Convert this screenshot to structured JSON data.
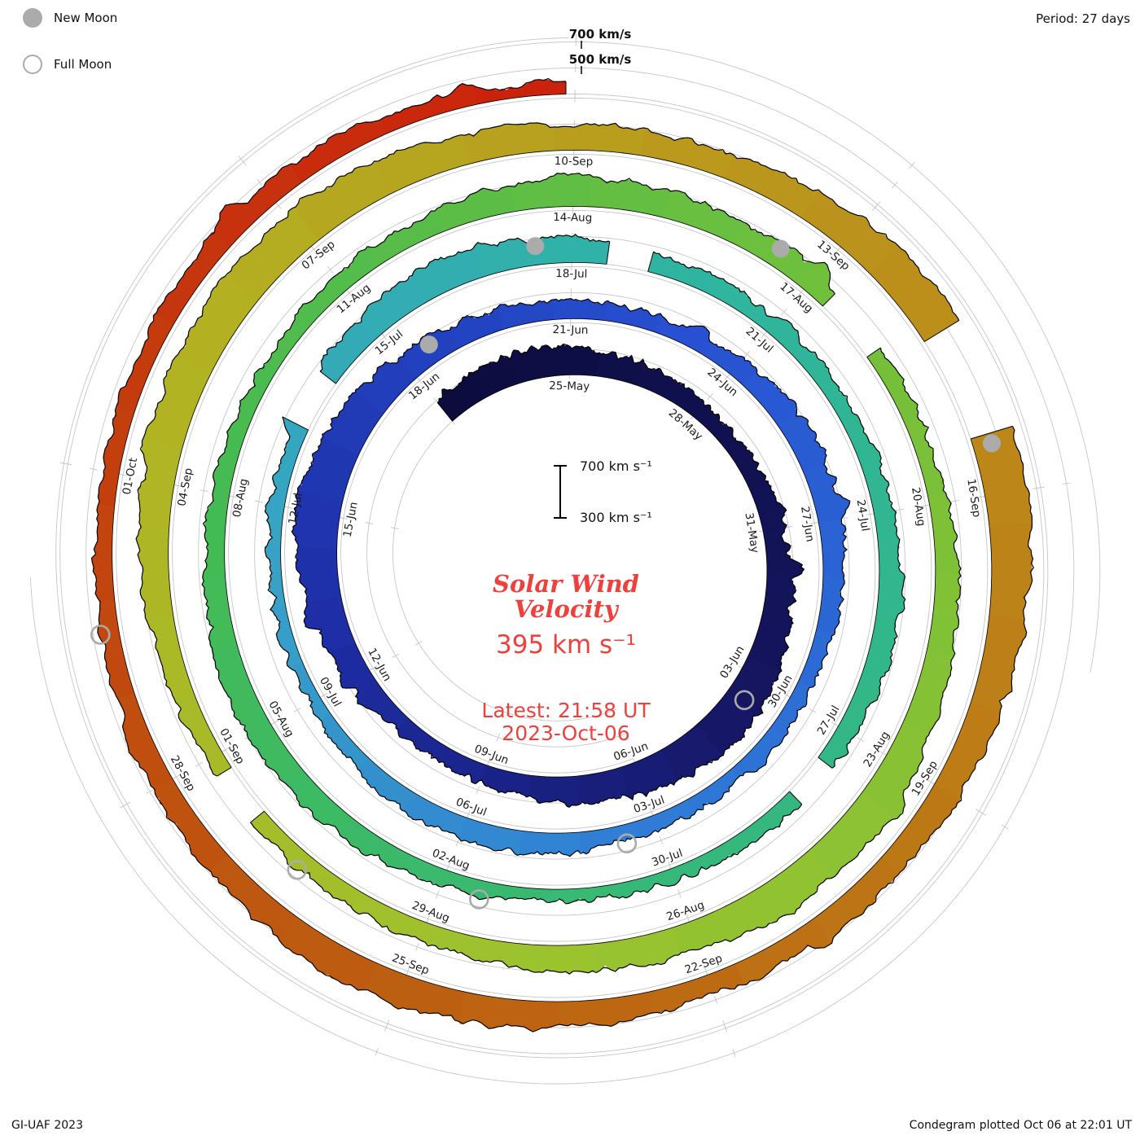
{
  "colors": {
    "accent_red": "#ee403c",
    "moon_gray": "#ababab",
    "grid": "#c6c6c6",
    "label": "#1a1a1a"
  },
  "legend": {
    "new_moon": "New Moon",
    "full_moon": "Full Moon"
  },
  "header": {
    "period": "Period: 27 days"
  },
  "outer_scale": {
    "v700": "700 km/s",
    "v500": "500 km/s"
  },
  "center": {
    "bar_high": "700 km s⁻¹",
    "bar_low": "300 km s⁻¹",
    "title_line1": "Solar Wind",
    "title_line2": "Velocity",
    "current_value": "395 km s⁻¹",
    "latest": "Latest: 21:58 UT",
    "date": "2023-Oct-06"
  },
  "footer": {
    "credit": "GI-UAF 2023",
    "plotted": "Condegram plotted Oct 06 at 22:01 UT"
  },
  "chart_data": {
    "type": "line",
    "layout": "polar-spiral-condegram",
    "title": "Solar Wind Velocity",
    "period_days": 27,
    "start_date": "2023-05-22",
    "latest_utc": "2023-10-06 21:58",
    "latest_velocity_km_s": 395,
    "velocity_axis": {
      "baseline": 300,
      "ring_levels": [
        300,
        500,
        700
      ],
      "unit": "km/s"
    },
    "first_label_day_offset": 3,
    "label_step_days": 3,
    "date_labels": [
      "25-May",
      "28-May",
      "31-May",
      "03-Jun",
      "06-Jun",
      "09-Jun",
      "12-Jun",
      "15-Jun",
      "18-Jun",
      "21-Jun",
      "24-Jun",
      "27-Jun",
      "30-Jun",
      "03-Jul",
      "06-Jul",
      "09-Jul",
      "12-Jul",
      "15-Jul",
      "18-Jul",
      "21-Jul",
      "24-Jul",
      "27-Jul",
      "30-Jul",
      "02-Aug",
      "05-Aug",
      "08-Aug",
      "11-Aug",
      "14-Aug",
      "17-Aug",
      "20-Aug",
      "23-Aug",
      "26-Aug",
      "29-Aug",
      "01-Sep",
      "04-Sep",
      "07-Sep",
      "10-Sep",
      "13-Sep",
      "16-Sep",
      "19-Sep",
      "22-Sep",
      "25-Sep",
      "28-Sep",
      "01-Oct"
    ],
    "daily_velocity_km_s": [
      470,
      500,
      540,
      520,
      490,
      460,
      440,
      430,
      440,
      460,
      490,
      530,
      570,
      610,
      590,
      550,
      510,
      480,
      450,
      430,
      440,
      480,
      540,
      600,
      640,
      610,
      560,
      510,
      480,
      460,
      440,
      425,
      430,
      450,
      480,
      500,
      480,
      455,
      435,
      420,
      405,
      395,
      415,
      445,
      475,
      460,
      440,
      418,
      400,
      388,
      385,
      405,
      435,
      470,
      510,
      545,
      525,
      490,
      460,
      435,
      420,
      412,
      428,
      455,
      485,
      470,
      448,
      430,
      412,
      398,
      392,
      402,
      422,
      452,
      482,
      512,
      492,
      462,
      442,
      422,
      412,
      432,
      462,
      502,
      532,
      512,
      482,
      455,
      435,
      425,
      445,
      475,
      515,
      555,
      585,
      562,
      532,
      502,
      472,
      452,
      432,
      422,
      442,
      472,
      512,
      552,
      592,
      622,
      602,
      572,
      532,
      502,
      482,
      525,
      575,
      615,
      645,
      622,
      582,
      545,
      512,
      492,
      472,
      462,
      482,
      512,
      542,
      522,
      492,
      462,
      442,
      432,
      422,
      432,
      452,
      472,
      442,
      400
    ],
    "data_gaps_day_ranges": [
      [
        52.2,
        53.0
      ],
      [
        57.5,
        58.1
      ],
      [
        66.5,
        67.1
      ],
      [
        87.3,
        88.1
      ],
      [
        101.2,
        101.8
      ],
      [
        115.3,
        116.4
      ]
    ],
    "moons": {
      "new_dates": [
        "2023-06-18",
        "2023-07-17",
        "2023-08-16",
        "2023-09-15"
      ],
      "full_dates": [
        "2023-06-03",
        "2023-07-03",
        "2023-08-01",
        "2023-08-30",
        "2023-09-29"
      ],
      "new_day_offsets": [
        27.5,
        56.5,
        86.5,
        116.5
      ],
      "full_day_offsets": [
        12.5,
        42.5,
        71.5,
        100.5,
        130.5
      ]
    },
    "color_timeline": [
      [
        0,
        "#0c0c3e"
      ],
      [
        12,
        "#15155f"
      ],
      [
        22,
        "#1d2ea6"
      ],
      [
        32,
        "#2750d2"
      ],
      [
        42,
        "#2f7bd6"
      ],
      [
        50,
        "#37a2c6"
      ],
      [
        58,
        "#2fb4a4"
      ],
      [
        68,
        "#34b87e"
      ],
      [
        78,
        "#44bb52"
      ],
      [
        88,
        "#74c03a"
      ],
      [
        98,
        "#9cc32e"
      ],
      [
        106,
        "#b2b322"
      ],
      [
        113,
        "#bb961c"
      ],
      [
        120,
        "#bd7a16"
      ],
      [
        127,
        "#bd5a10"
      ],
      [
        133,
        "#c43c0e"
      ],
      [
        138,
        "#cc1f0c"
      ]
    ]
  }
}
